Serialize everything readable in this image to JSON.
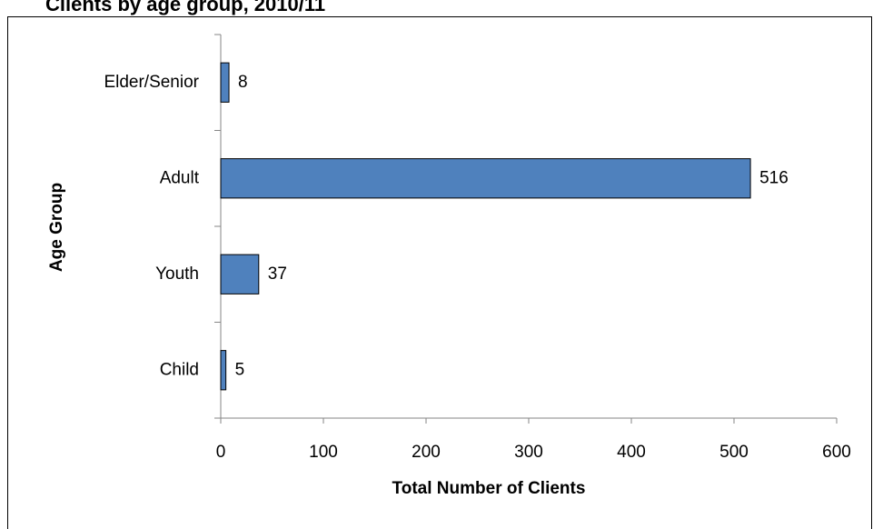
{
  "chart_data": {
    "type": "bar",
    "orientation": "horizontal",
    "title": "Clients by age group, 2010/11",
    "x_label": "Total Number of Clients",
    "y_label": "Age Group",
    "categories": [
      "Elder/Senior",
      "Adult",
      "Youth",
      "Child"
    ],
    "values": [
      8,
      516,
      37,
      5
    ],
    "color": "#4f81bd",
    "xlim": [
      0,
      600
    ],
    "xticks": [
      0,
      100,
      200,
      300,
      400,
      500,
      600
    ],
    "grid": false
  }
}
